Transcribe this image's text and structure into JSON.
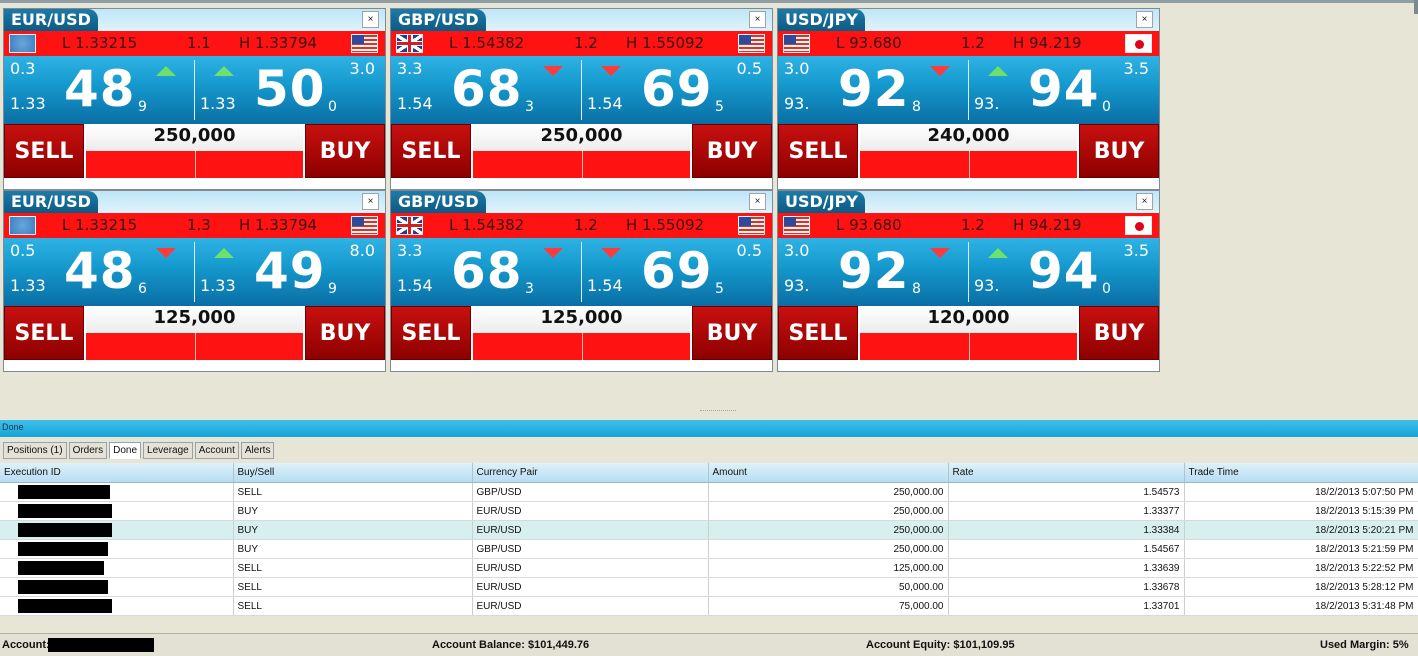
{
  "tiles": [
    {
      "pair": "EUR/USD",
      "low": "L 1.33215",
      "spread": "1.1",
      "high": "H 1.33794",
      "flag_left": "eu-flag-icon",
      "flag_right": "us-flag-icon",
      "bid": {
        "corner": "0.3",
        "prefix": "1.33",
        "big": "48",
        "sub": "9",
        "arrow": "up"
      },
      "ask": {
        "corner": "3.0",
        "prefix": "1.33",
        "big": "50",
        "sub": "0",
        "arrow": "up"
      },
      "amount": "250,000",
      "sell": "SELL",
      "buy": "BUY"
    },
    {
      "pair": "GBP/USD",
      "low": "L 1.54382",
      "spread": "1.2",
      "high": "H 1.55092",
      "flag_left": "uk-flag-icon",
      "flag_right": "us-flag-icon",
      "bid": {
        "corner": "3.3",
        "prefix": "1.54",
        "big": "68",
        "sub": "3",
        "arrow": "down"
      },
      "ask": {
        "corner": "0.5",
        "prefix": "1.54",
        "big": "69",
        "sub": "5",
        "arrow": "down"
      },
      "amount": "250,000",
      "sell": "SELL",
      "buy": "BUY"
    },
    {
      "pair": "USD/JPY",
      "low": "L 93.680",
      "spread": "1.2",
      "high": "H 94.219",
      "flag_left": "us-flag-icon",
      "flag_right": "jp-flag-icon",
      "bid": {
        "corner": "3.0",
        "prefix": "93.",
        "big": "92",
        "sub": "8",
        "arrow": "down"
      },
      "ask": {
        "corner": "3.5",
        "prefix": "93.",
        "big": "94",
        "sub": "0",
        "arrow": "up"
      },
      "amount": "240,000",
      "sell": "SELL",
      "buy": "BUY"
    },
    {
      "pair": "EUR/USD",
      "low": "L 1.33215",
      "spread": "1.3",
      "high": "H 1.33794",
      "flag_left": "eu-flag-icon",
      "flag_right": "us-flag-icon",
      "bid": {
        "corner": "0.5",
        "prefix": "1.33",
        "big": "48",
        "sub": "6",
        "arrow": "down"
      },
      "ask": {
        "corner": "8.0",
        "prefix": "1.33",
        "big": "49",
        "sub": "9",
        "arrow": "up"
      },
      "amount": "125,000",
      "sell": "SELL",
      "buy": "BUY"
    },
    {
      "pair": "GBP/USD",
      "low": "L 1.54382",
      "spread": "1.2",
      "high": "H 1.55092",
      "flag_left": "uk-flag-icon",
      "flag_right": "us-flag-icon",
      "bid": {
        "corner": "3.3",
        "prefix": "1.54",
        "big": "68",
        "sub": "3",
        "arrow": "down"
      },
      "ask": {
        "corner": "0.5",
        "prefix": "1.54",
        "big": "69",
        "sub": "5",
        "arrow": "down"
      },
      "amount": "125,000",
      "sell": "SELL",
      "buy": "BUY"
    },
    {
      "pair": "USD/JPY",
      "low": "L 93.680",
      "spread": "1.2",
      "high": "H 94.219",
      "flag_left": "us-flag-icon",
      "flag_right": "jp-flag-icon",
      "bid": {
        "corner": "3.0",
        "prefix": "93.",
        "big": "92",
        "sub": "8",
        "arrow": "down"
      },
      "ask": {
        "corner": "3.5",
        "prefix": "93.",
        "big": "94",
        "sub": "0",
        "arrow": "up"
      },
      "amount": "120,000",
      "sell": "SELL",
      "buy": "BUY"
    }
  ],
  "close_glyph": "×",
  "status_text": "Done",
  "tabs": [
    "Positions (1)",
    "Orders",
    "Done",
    "Leverage",
    "Account",
    "Alerts"
  ],
  "active_tab": "Done",
  "table": {
    "columns": [
      "Execution ID",
      "Buy/Sell",
      "Currency Pair",
      "Amount",
      "Rate",
      "Trade Time"
    ],
    "rows": [
      {
        "side": "SELL",
        "pair": "GBP/USD",
        "amount": "250,000.00",
        "rate": "1.54573",
        "time": "18/2/2013 5:07:50 PM"
      },
      {
        "side": "BUY",
        "pair": "EUR/USD",
        "amount": "250,000.00",
        "rate": "1.33377",
        "time": "18/2/2013 5:15:39 PM"
      },
      {
        "side": "BUY",
        "pair": "EUR/USD",
        "amount": "250,000.00",
        "rate": "1.33384",
        "time": "18/2/2013 5:20:21 PM"
      },
      {
        "side": "BUY",
        "pair": "GBP/USD",
        "amount": "250,000.00",
        "rate": "1.54567",
        "time": "18/2/2013 5:21:59 PM"
      },
      {
        "side": "SELL",
        "pair": "EUR/USD",
        "amount": "125,000.00",
        "rate": "1.33639",
        "time": "18/2/2013 5:22:52 PM"
      },
      {
        "side": "SELL",
        "pair": "EUR/USD",
        "amount": "50,000.00",
        "rate": "1.33678",
        "time": "18/2/2013 5:28:12 PM"
      },
      {
        "side": "SELL",
        "pair": "EUR/USD",
        "amount": "75,000.00",
        "rate": "1.33701",
        "time": "18/2/2013 5:31:48 PM"
      }
    ]
  },
  "footer": {
    "account_label": "Account:",
    "balance": "Account Balance:  $101,449.76",
    "equity": "Account Equity: $101,109.95",
    "margin": "Used Margin: 5%"
  },
  "colors": {
    "quote_red": "#fe1212",
    "sell_buy_red": "#b00000",
    "price_blue": "#1497cc",
    "status_blue": "#15a4d9"
  }
}
